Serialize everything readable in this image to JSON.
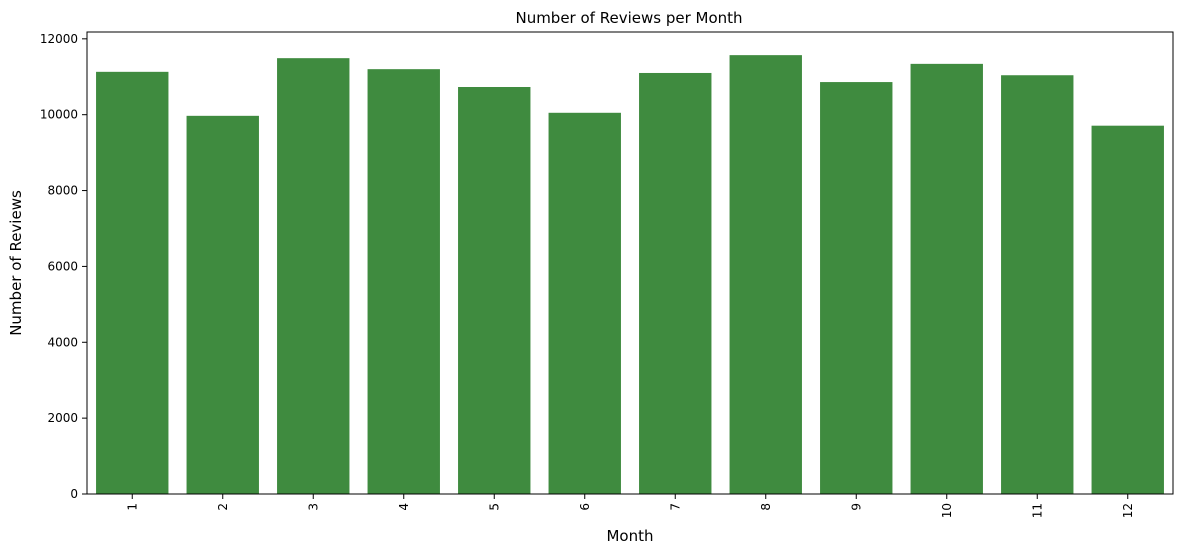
{
  "chart_data": {
    "type": "bar",
    "title": "Number of Reviews per Month",
    "xlabel": "Month",
    "ylabel": "Number of Reviews",
    "categories": [
      "1",
      "2",
      "3",
      "4",
      "5",
      "6",
      "7",
      "8",
      "9",
      "10",
      "11",
      "12"
    ],
    "values": [
      11130,
      9970,
      11490,
      11200,
      10730,
      10050,
      11100,
      11570,
      10860,
      11340,
      11040,
      9710
    ],
    "yticks": [
      0,
      2000,
      4000,
      6000,
      8000,
      10000,
      12000
    ],
    "ylim": [
      0,
      12180
    ],
    "grid": false,
    "legend": "none",
    "xtick_rotation": "vertical",
    "colors": {
      "bar": "#3f8b3f",
      "axis": "#000000",
      "background": "#ffffff"
    }
  }
}
